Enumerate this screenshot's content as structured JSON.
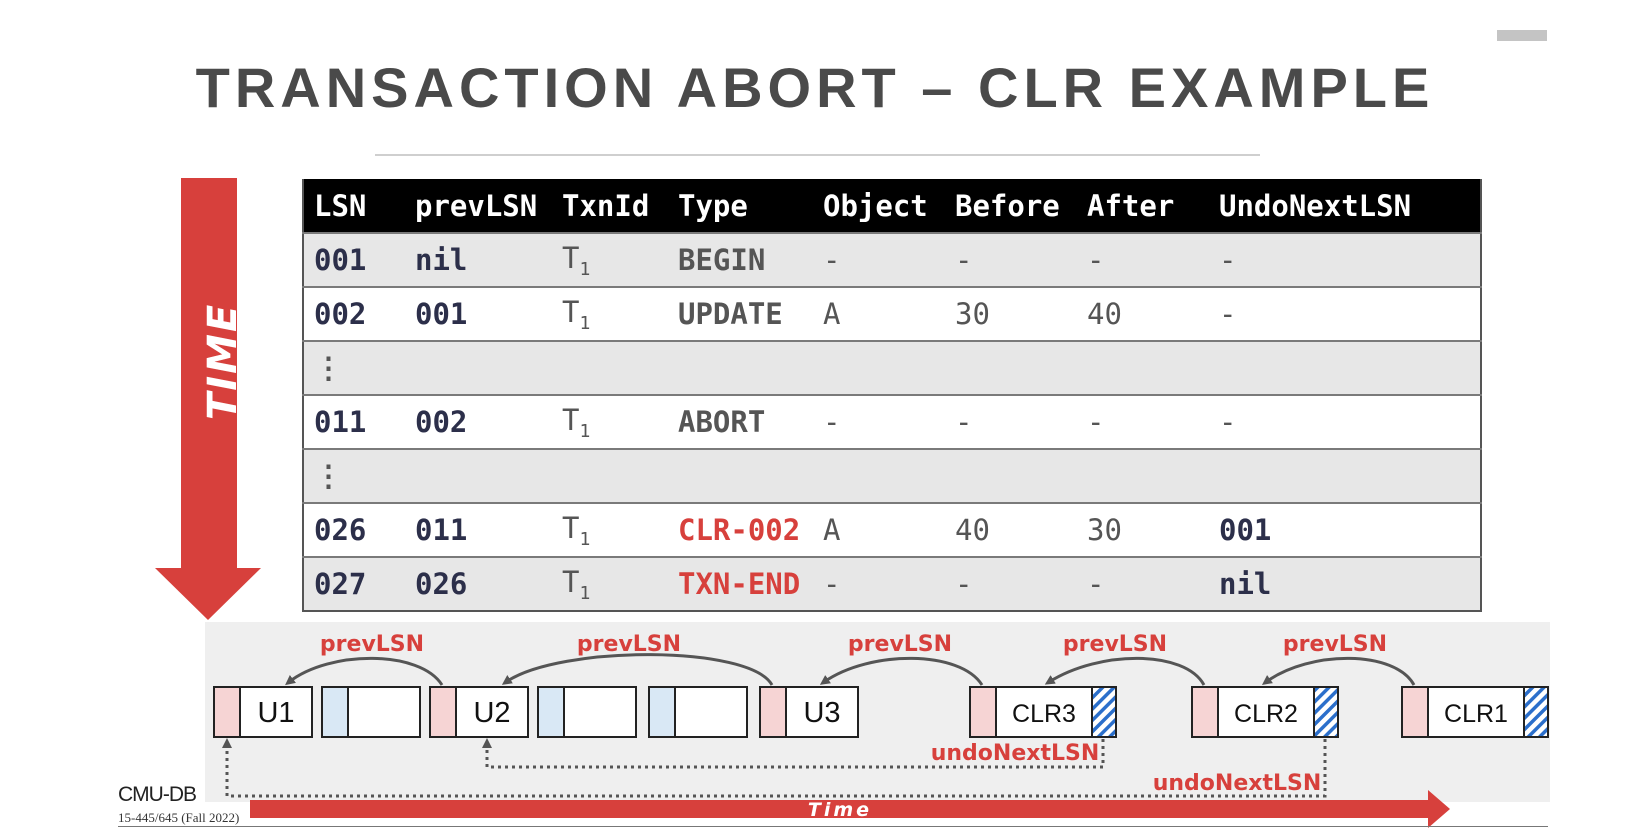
{
  "slide": {
    "title": "TRANSACTION ABORT – CLR EXAMPLE",
    "time_vertical_label": "TIME",
    "time_horizontal_label": "Time",
    "footer_logo": "CMU-DB",
    "footer_course": "15-445/645 (Fall 2022)"
  },
  "colors": {
    "accent_red": "#d7403c",
    "row_gray": "#e7e7e7",
    "lsn_navy": "#2c2f4a",
    "prev_pink": "#f6d4d4",
    "undo_blue": "#2b6fcb",
    "empty_blue": "#d9e8f5"
  },
  "table": {
    "headers": [
      "LSN",
      "prevLSN",
      "TxnId",
      "Type",
      "Object",
      "Before",
      "After",
      "UndoNextLSN"
    ],
    "rows": [
      {
        "lsn": "001",
        "prev": "nil",
        "txn": "T",
        "txn_sub": "1",
        "type": "BEGIN",
        "obj": "-",
        "before": "-",
        "after": "-",
        "undo": "-"
      },
      {
        "lsn": "002",
        "prev": "001",
        "txn": "T",
        "txn_sub": "1",
        "type": "UPDATE",
        "obj": "A",
        "before": "30",
        "after": "40",
        "undo": "-"
      },
      {
        "gap": "⋮"
      },
      {
        "lsn": "011",
        "prev": "002",
        "txn": "T",
        "txn_sub": "1",
        "type": "ABORT",
        "obj": "-",
        "before": "-",
        "after": "-",
        "undo": "-"
      },
      {
        "gap": "⋮"
      },
      {
        "lsn": "026",
        "prev": "011",
        "txn": "T",
        "txn_sub": "1",
        "type": "CLR-002",
        "obj": "A",
        "before": "40",
        "after": "30",
        "undo": "001"
      },
      {
        "lsn": "027",
        "prev": "026",
        "txn": "T",
        "txn_sub": "1",
        "type": "TXN-END",
        "obj": "-",
        "before": "-",
        "after": "-",
        "undo": "nil"
      }
    ]
  },
  "log_diagram": {
    "records": [
      "U1",
      "U2",
      "U3",
      "CLR3",
      "CLR2",
      "CLR1"
    ],
    "prev_label": "prevLSN",
    "undo_label": "undoNextLSN"
  }
}
